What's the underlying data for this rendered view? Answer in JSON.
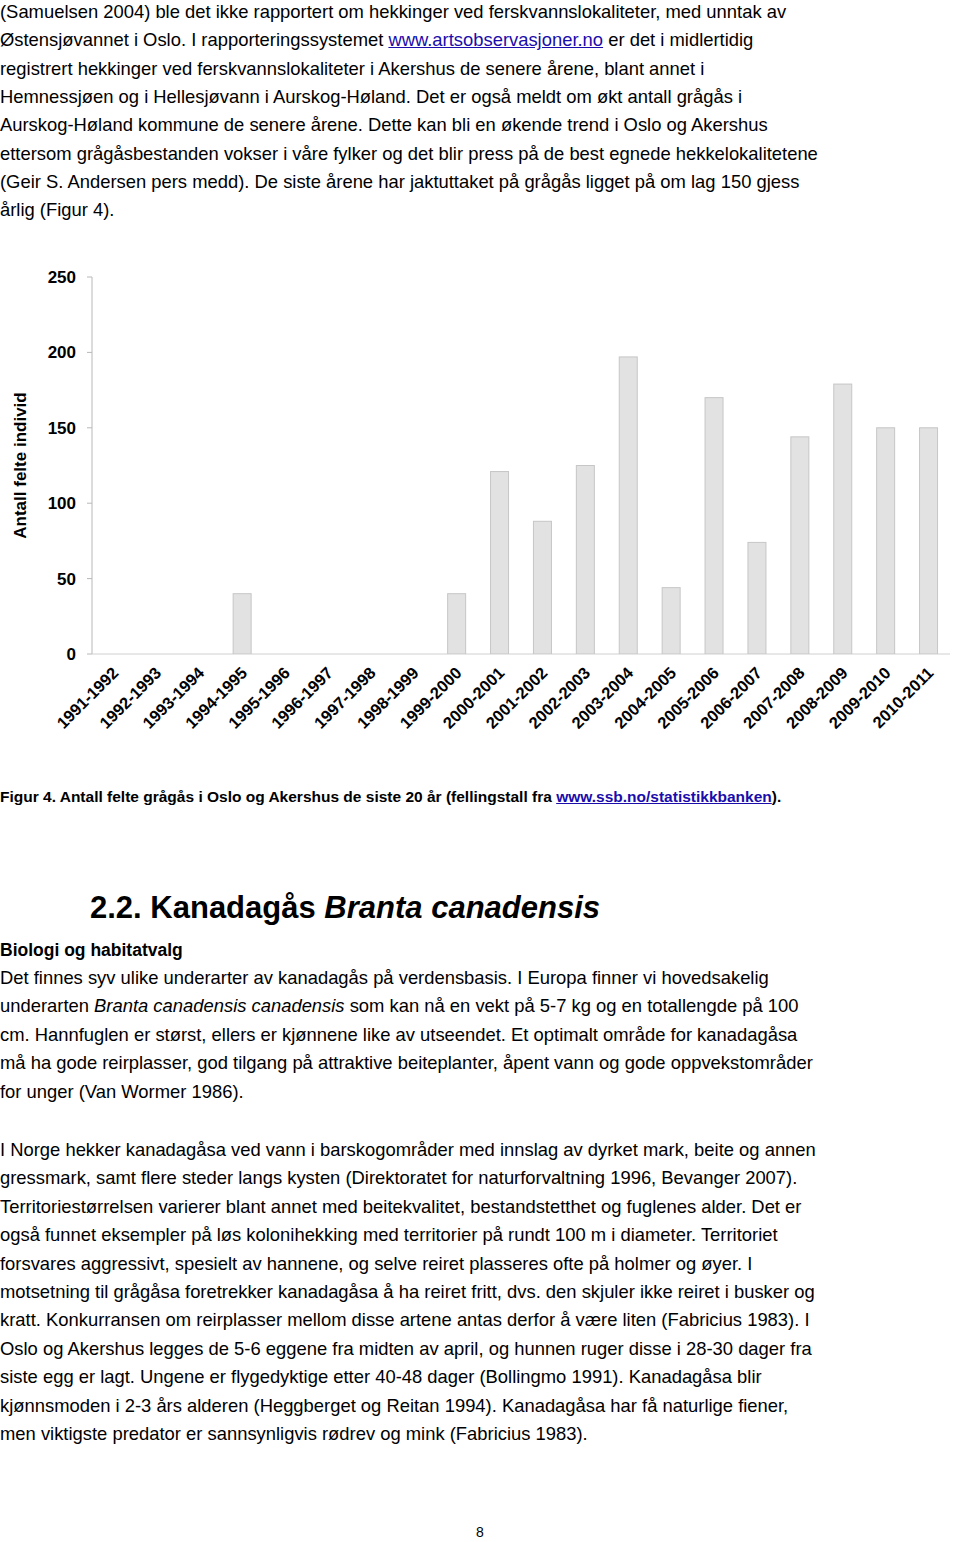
{
  "intro": {
    "lines": [
      [
        "(Samuelsen 2004) ble det ikke rapportert om hekkinger ved ferskvannslokaliteter, med unntak av"
      ],
      [
        "Østensjøvannet i Oslo. I rapporteringssystemet ",
        {
          "text": "www.artsobservasjoner.no",
          "style": "link"
        },
        " er det i midlertidig"
      ],
      [
        "registrert hekkinger ved ferskvannslokaliteter i Akershus de senere årene, blant annet i"
      ],
      [
        "Hemnessjøen og i Hellesjøvann i Aurskog-Høland. Det er også meldt om økt antall grågås i"
      ],
      [
        "Aurskog-Høland kommune de senere årene. Dette kan bli en økende trend i Oslo og Akershus"
      ],
      [
        "ettersom grågåsbestanden vokser i våre fylker og det blir press på de best egnede hekkelokalitetene"
      ],
      [
        "(Geir S. Andersen pers medd). De siste årene har jaktuttaket på grågås ligget på om lag 150 gjess"
      ],
      [
        "årlig (Figur 4)."
      ]
    ]
  },
  "chart_data": {
    "type": "bar",
    "y_label": "Antall felte individ",
    "categories": [
      "1991-1992",
      "1992-1993",
      "1993-1994",
      "1994-1995",
      "1995-1996",
      "1996-1997",
      "1997-1998",
      "1998-1999",
      "1999-2000",
      "2000-2001",
      "2001-2002",
      "2002-2003",
      "2003-2004",
      "2004-2005",
      "2005-2006",
      "2006-2007",
      "2007-2008",
      "2008-2009",
      "2009-2010",
      "2010-2011"
    ],
    "values": [
      0,
      0,
      0,
      40,
      0,
      0,
      0,
      0,
      40,
      121,
      88,
      125,
      197,
      44,
      170,
      74,
      144,
      179,
      150,
      150
    ],
    "color": "#e2e2e2",
    "ylim": [
      0,
      250
    ],
    "yticks": [
      0,
      50,
      100,
      150,
      200,
      250
    ],
    "grid": false
  },
  "caption": [
    "Figur 4. Antall felte grågås i Oslo og Akershus de siste 20 år (fellingstall fra ",
    {
      "text": "www.ssb.no/statistikkbanken",
      "style": "link"
    },
    ")."
  ],
  "section": {
    "heading": [
      "2.2. Kanadagås ",
      {
        "text": "Branta canadensis",
        "style": "italic"
      }
    ],
    "subheading": "Biologi og habitatvalg",
    "paragraphs": [
      {
        "lines": [
          [
            "Det finnes syv ulike underarter av kanadagås på verdensbasis. I Europa finner vi hovedsakelig"
          ],
          [
            "underarten ",
            {
              "text": "Branta canadensis canadensis",
              "style": "italic"
            },
            " som kan nå en vekt på 5-7 kg og en totallengde på 100"
          ],
          [
            "cm. Hannfuglen er størst, ellers er kjønnene like av utseendet. Et optimalt område for kanadagåsa"
          ],
          [
            "må ha gode reirplasser, god tilgang på attraktive beiteplanter, åpent vann og gode oppvekstområder"
          ],
          [
            "for unger (Van Wormer 1986)."
          ]
        ]
      },
      {
        "lines": [
          [
            "I Norge hekker kanadagåsa ved vann i barskogområder med innslag av dyrket mark, beite og annen"
          ],
          [
            "gressmark, samt flere steder langs kysten (Direktoratet for naturforvaltning 1996, Bevanger 2007)."
          ],
          [
            "Territoriestørrelsen varierer blant annet med beitekvalitet, bestandstetthet og fuglenes alder. Det er"
          ],
          [
            "også funnet eksempler på løs kolonihekking med territorier på rundt 100 m i diameter. Territoriet"
          ],
          [
            "forsvares aggressivt, spesielt av hannene, og selve reiret plasseres ofte på holmer og øyer. I"
          ],
          [
            "motsetning til grågåsa foretrekker kanadagåsa å ha reiret fritt, dvs. den skjuler ikke reiret i busker og"
          ],
          [
            "kratt. Konkurransen om reirplasser mellom disse artene antas derfor å være liten (Fabricius 1983). I"
          ],
          [
            "Oslo og Akershus legges de 5-6 eggene fra midten av april, og hunnen ruger disse i 28-30 dager fra"
          ],
          [
            "siste egg er lagt. Ungene er flygedyktige etter 40-48 dager (Bollingmo 1991). Kanadagåsa blir"
          ],
          [
            "kjønnsmoden i 2-3 års alderen (Heggberget og Reitan 1994). Kanadagåsa har få naturlige fiener,"
          ],
          [
            "men viktigste predator er sannsynligvis rødrev og mink (Fabricius 1983)."
          ]
        ]
      }
    ]
  },
  "page_number": "8"
}
